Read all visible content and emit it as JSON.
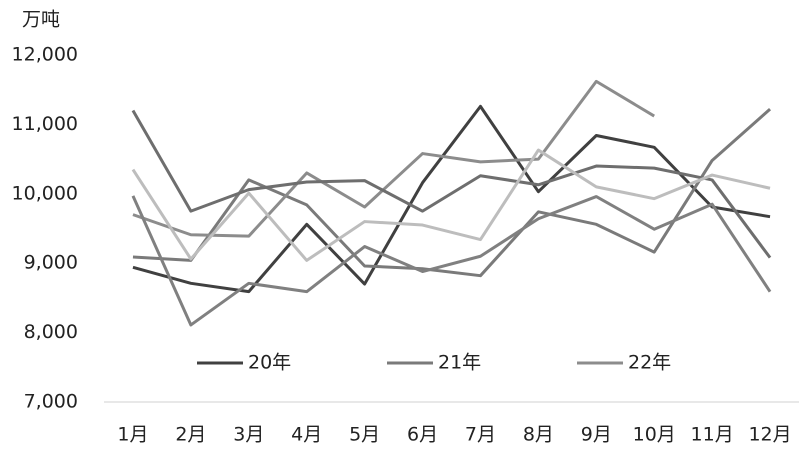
{
  "chart_data": {
    "type": "line",
    "title": "万吨",
    "categories": [
      "1月",
      "2月",
      "3月",
      "4月",
      "5月",
      "6月",
      "7月",
      "8月",
      "9月",
      "10月",
      "11月",
      "12月"
    ],
    "series": [
      {
        "name": "20年",
        "color": "#404040",
        "values": [
          8940,
          8710,
          8590,
          9560,
          8700,
          10160,
          11260,
          10030,
          10840,
          10670,
          9810,
          9670
        ]
      },
      {
        "name": "21年",
        "color": "#7a7a7a",
        "values": [
          9090,
          9040,
          10200,
          9840,
          8960,
          8920,
          8820,
          9740,
          9560,
          9160,
          10480,
          11220
        ]
      },
      {
        "name": "22年",
        "color": "#8c8c8c",
        "values": [
          9700,
          9410,
          9390,
          10300,
          9810,
          10580,
          10460,
          10500,
          11620,
          11120,
          null,
          null
        ]
      },
      {
        "color": "#6e6e6e",
        "values": [
          11200,
          9750,
          10060,
          10170,
          10190,
          9750,
          10260,
          10130,
          10400,
          10370,
          10200,
          9080
        ]
      },
      {
        "color": "#808080",
        "values": [
          9970,
          8110,
          8710,
          8590,
          9240,
          8880,
          9100,
          9640,
          9960,
          9490,
          9850,
          8590
        ]
      },
      {
        "color": "#bdbdbd",
        "values": [
          10350,
          9060,
          10010,
          9040,
          9600,
          9550,
          9340,
          10630,
          10100,
          9930,
          10270,
          10080
        ]
      }
    ],
    "ylim": [
      7000,
      12000
    ],
    "yticks": [
      {
        "value": 7000,
        "label": "7,000"
      },
      {
        "value": 8000,
        "label": "8,000"
      },
      {
        "value": 9000,
        "label": "9,000"
      },
      {
        "value": 10000,
        "label": "10,000"
      },
      {
        "value": 11000,
        "label": "11,000"
      },
      {
        "value": 12000,
        "label": "12,000"
      }
    ]
  }
}
